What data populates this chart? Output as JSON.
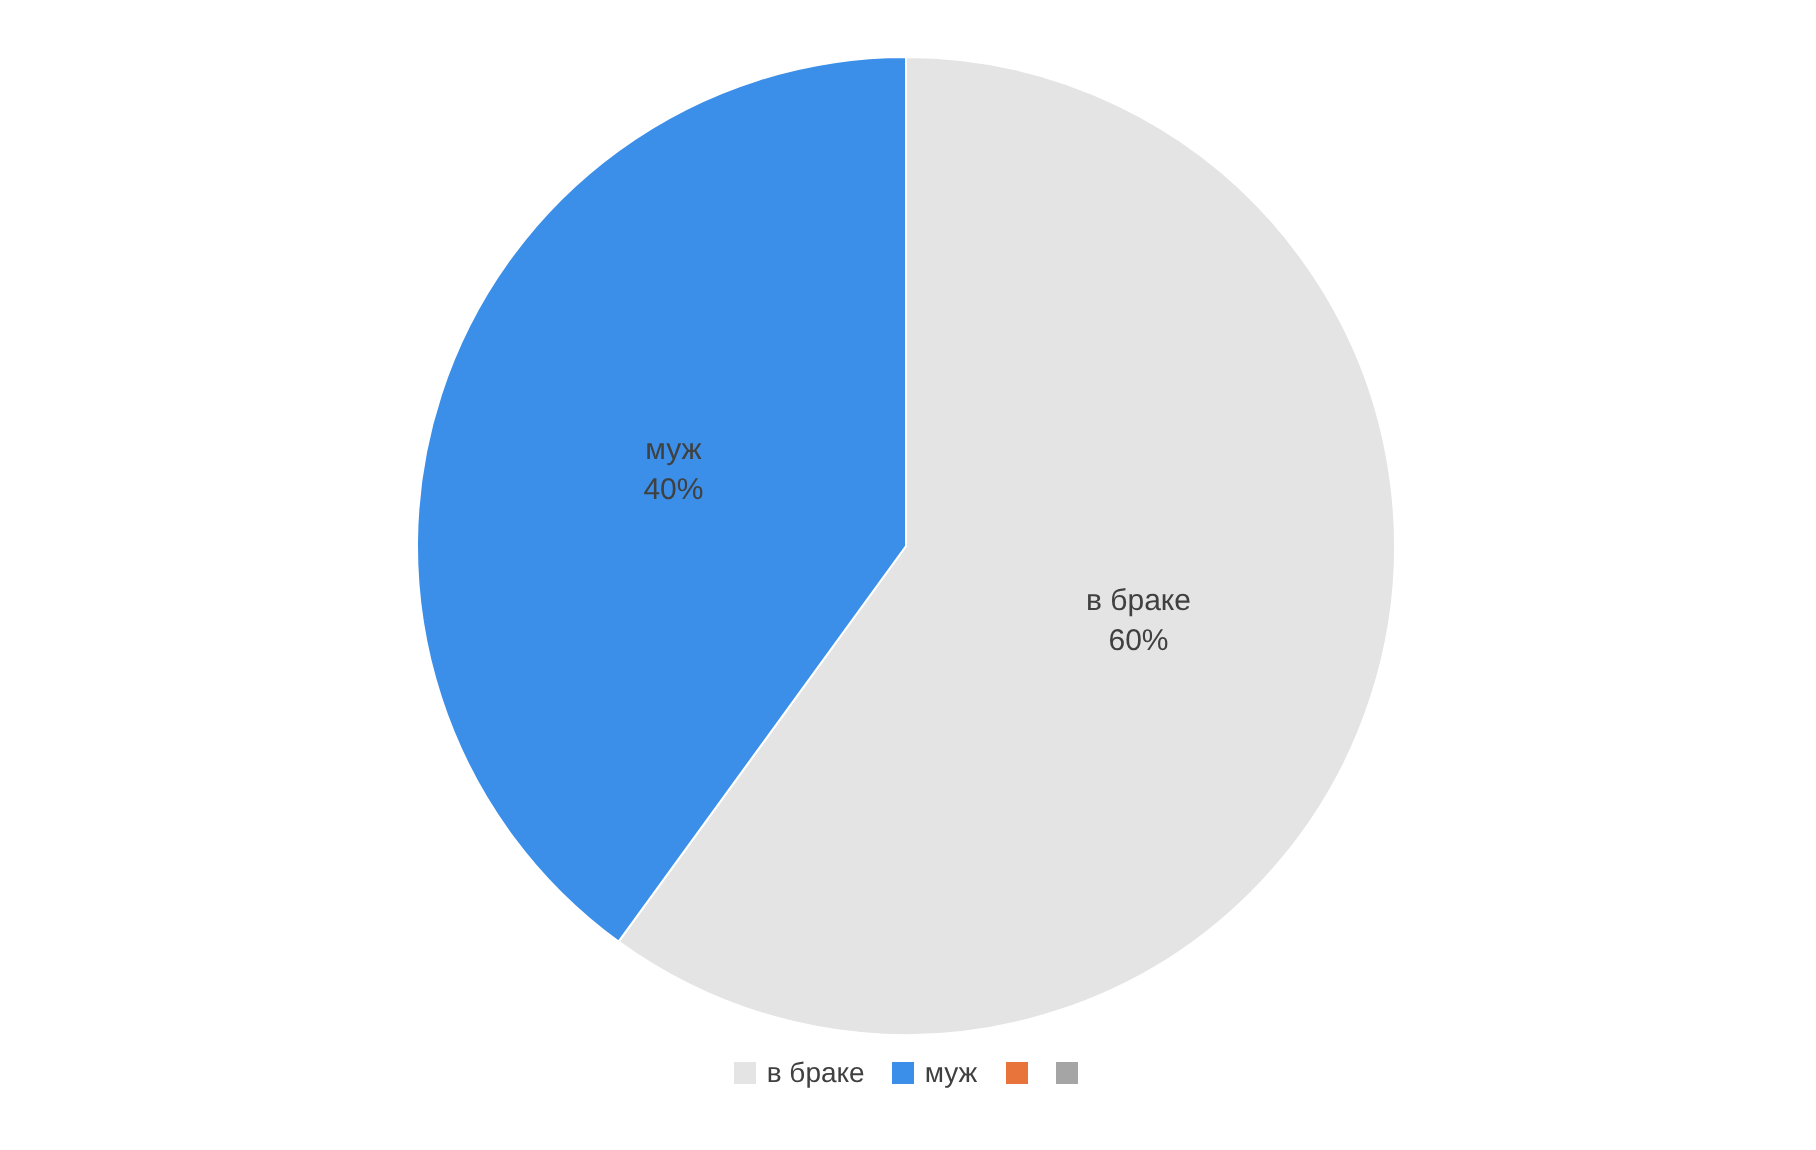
{
  "chart_data": {
    "type": "pie",
    "categories": [
      "в браке",
      "муж",
      null,
      null
    ],
    "values": [
      60,
      40,
      0,
      0
    ],
    "value_labels": [
      "60%",
      "40%",
      null,
      null
    ],
    "colors": [
      "#e4e4e4",
      "#3b8fe8",
      "#e8743b",
      "#a5a5a5"
    ],
    "legend": "bottom"
  }
}
